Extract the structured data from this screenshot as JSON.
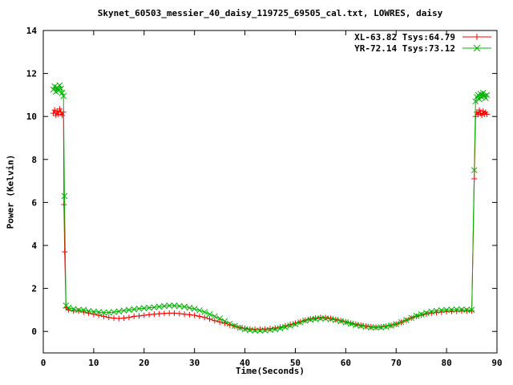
{
  "title": "Skynet_60503_messier_40_daisy_119725_69505_cal.txt, LOWRES, daisy",
  "chart_data": {
    "type": "line",
    "title": "Skynet_60503_messier_40_daisy_119725_69505_cal.txt, LOWRES, daisy",
    "xlabel": "Time(Seconds)",
    "ylabel": "Power (Kelvin)",
    "xlim": [
      0,
      90
    ],
    "ylim": [
      -1,
      14
    ],
    "xticks": [
      0,
      10,
      20,
      30,
      40,
      50,
      60,
      70,
      80,
      90
    ],
    "yticks": [
      0,
      2,
      4,
      6,
      8,
      10,
      12,
      14
    ],
    "grid": false,
    "legend_position": "top-right",
    "axis_color": "#000000",
    "series": [
      {
        "name": "XL-63.82 Tsys:64.79",
        "color": "#ff0000",
        "marker": "plus",
        "points": [
          [
            2,
            10.15
          ],
          [
            2.25,
            10.3
          ],
          [
            2.5,
            10.05
          ],
          [
            2.75,
            10.25
          ],
          [
            3,
            10.1
          ],
          [
            3.25,
            10.35
          ],
          [
            3.5,
            10.2
          ],
          [
            3.75,
            10.05
          ],
          [
            4,
            10.2
          ],
          [
            4.1,
            5.9
          ],
          [
            4.25,
            3.7
          ],
          [
            4.5,
            1.1
          ],
          [
            5,
            1.0
          ],
          [
            6,
            0.95
          ],
          [
            7,
            0.95
          ],
          [
            8,
            0.9
          ],
          [
            9,
            0.85
          ],
          [
            10,
            0.8
          ],
          [
            11,
            0.75
          ],
          [
            12,
            0.7
          ],
          [
            13,
            0.65
          ],
          [
            14,
            0.62
          ],
          [
            15,
            0.6
          ],
          [
            16,
            0.62
          ],
          [
            17,
            0.65
          ],
          [
            18,
            0.7
          ],
          [
            19,
            0.72
          ],
          [
            20,
            0.75
          ],
          [
            21,
            0.78
          ],
          [
            22,
            0.8
          ],
          [
            23,
            0.82
          ],
          [
            24,
            0.84
          ],
          [
            25,
            0.85
          ],
          [
            26,
            0.85
          ],
          [
            27,
            0.83
          ],
          [
            28,
            0.8
          ],
          [
            29,
            0.78
          ],
          [
            30,
            0.75
          ],
          [
            31,
            0.7
          ],
          [
            32,
            0.65
          ],
          [
            33,
            0.58
          ],
          [
            34,
            0.5
          ],
          [
            35,
            0.44
          ],
          [
            36,
            0.38
          ],
          [
            37,
            0.3
          ],
          [
            38,
            0.24
          ],
          [
            39,
            0.18
          ],
          [
            40,
            0.14
          ],
          [
            41,
            0.11
          ],
          [
            42,
            0.1
          ],
          [
            43,
            0.1
          ],
          [
            44,
            0.11
          ],
          [
            45,
            0.13
          ],
          [
            46,
            0.16
          ],
          [
            47,
            0.2
          ],
          [
            48,
            0.26
          ],
          [
            49,
            0.32
          ],
          [
            50,
            0.38
          ],
          [
            51,
            0.45
          ],
          [
            52,
            0.52
          ],
          [
            53,
            0.58
          ],
          [
            54,
            0.62
          ],
          [
            55,
            0.65
          ],
          [
            56,
            0.64
          ],
          [
            57,
            0.6
          ],
          [
            58,
            0.55
          ],
          [
            59,
            0.5
          ],
          [
            60,
            0.44
          ],
          [
            61,
            0.38
          ],
          [
            62,
            0.33
          ],
          [
            63,
            0.28
          ],
          [
            64,
            0.24
          ],
          [
            65,
            0.21
          ],
          [
            66,
            0.2
          ],
          [
            67,
            0.21
          ],
          [
            68,
            0.24
          ],
          [
            69,
            0.28
          ],
          [
            70,
            0.34
          ],
          [
            71,
            0.42
          ],
          [
            72,
            0.52
          ],
          [
            73,
            0.62
          ],
          [
            74,
            0.7
          ],
          [
            75,
            0.76
          ],
          [
            76,
            0.81
          ],
          [
            77,
            0.85
          ],
          [
            78,
            0.88
          ],
          [
            79,
            0.9
          ],
          [
            80,
            0.92
          ],
          [
            81,
            0.93
          ],
          [
            82,
            0.94
          ],
          [
            83,
            0.95
          ],
          [
            84,
            0.95
          ],
          [
            85,
            0.95
          ],
          [
            85.5,
            7.1
          ],
          [
            85.75,
            10.0
          ],
          [
            86,
            10.2
          ],
          [
            86.25,
            10.1
          ],
          [
            86.5,
            10.3
          ],
          [
            86.75,
            10.15
          ],
          [
            87,
            10.05
          ],
          [
            87.25,
            10.25
          ],
          [
            87.5,
            10.1
          ],
          [
            87.75,
            10.2
          ],
          [
            88,
            10.1
          ]
        ]
      },
      {
        "name": "YR-72.14 Tsys:73.12",
        "color": "#00b400",
        "marker": "cross",
        "points": [
          [
            2,
            11.25
          ],
          [
            2.25,
            11.4
          ],
          [
            2.5,
            11.15
          ],
          [
            2.75,
            11.35
          ],
          [
            3,
            11.2
          ],
          [
            3.25,
            11.45
          ],
          [
            3.5,
            11.3
          ],
          [
            3.75,
            11.1
          ],
          [
            4,
            10.95
          ],
          [
            4.2,
            6.3
          ],
          [
            4.5,
            1.2
          ],
          [
            5,
            1.1
          ],
          [
            6,
            1.05
          ],
          [
            7,
            1.0
          ],
          [
            8,
            1.0
          ],
          [
            9,
            0.95
          ],
          [
            10,
            0.92
          ],
          [
            11,
            0.9
          ],
          [
            12,
            0.88
          ],
          [
            13,
            0.88
          ],
          [
            14,
            0.9
          ],
          [
            15,
            0.93
          ],
          [
            16,
            0.97
          ],
          [
            17,
            1.0
          ],
          [
            18,
            1.03
          ],
          [
            19,
            1.06
          ],
          [
            20,
            1.08
          ],
          [
            21,
            1.1
          ],
          [
            22,
            1.12
          ],
          [
            23,
            1.15
          ],
          [
            24,
            1.18
          ],
          [
            25,
            1.2
          ],
          [
            26,
            1.2
          ],
          [
            27,
            1.18
          ],
          [
            28,
            1.15
          ],
          [
            29,
            1.1
          ],
          [
            30,
            1.05
          ],
          [
            31,
            0.98
          ],
          [
            32,
            0.9
          ],
          [
            33,
            0.8
          ],
          [
            34,
            0.7
          ],
          [
            35,
            0.6
          ],
          [
            36,
            0.48
          ],
          [
            37,
            0.36
          ],
          [
            38,
            0.26
          ],
          [
            39,
            0.17
          ],
          [
            40,
            0.1
          ],
          [
            41,
            0.06
          ],
          [
            42,
            0.04
          ],
          [
            43,
            0.04
          ],
          [
            44,
            0.05
          ],
          [
            45,
            0.07
          ],
          [
            46,
            0.1
          ],
          [
            47,
            0.14
          ],
          [
            48,
            0.2
          ],
          [
            49,
            0.27
          ],
          [
            50,
            0.34
          ],
          [
            51,
            0.42
          ],
          [
            52,
            0.5
          ],
          [
            53,
            0.55
          ],
          [
            54,
            0.58
          ],
          [
            55,
            0.6
          ],
          [
            56,
            0.6
          ],
          [
            57,
            0.57
          ],
          [
            58,
            0.53
          ],
          [
            59,
            0.48
          ],
          [
            60,
            0.42
          ],
          [
            61,
            0.36
          ],
          [
            62,
            0.3
          ],
          [
            63,
            0.26
          ],
          [
            64,
            0.22
          ],
          [
            65,
            0.19
          ],
          [
            66,
            0.18
          ],
          [
            67,
            0.19
          ],
          [
            68,
            0.22
          ],
          [
            69,
            0.27
          ],
          [
            70,
            0.34
          ],
          [
            71,
            0.43
          ],
          [
            72,
            0.53
          ],
          [
            73,
            0.63
          ],
          [
            74,
            0.72
          ],
          [
            75,
            0.8
          ],
          [
            76,
            0.86
          ],
          [
            77,
            0.92
          ],
          [
            78,
            0.96
          ],
          [
            79,
            0.99
          ],
          [
            80,
            1.0
          ],
          [
            81,
            1.01
          ],
          [
            82,
            1.02
          ],
          [
            83,
            1.02
          ],
          [
            84,
            1.01
          ],
          [
            85,
            1.0
          ],
          [
            85.5,
            7.5
          ],
          [
            85.75,
            10.7
          ],
          [
            86,
            10.9
          ],
          [
            86.25,
            11.0
          ],
          [
            86.5,
            10.8
          ],
          [
            86.75,
            11.05
          ],
          [
            87,
            10.9
          ],
          [
            87.25,
            11.1
          ],
          [
            87.5,
            10.95
          ],
          [
            87.75,
            10.85
          ],
          [
            88,
            11.0
          ]
        ]
      }
    ]
  }
}
